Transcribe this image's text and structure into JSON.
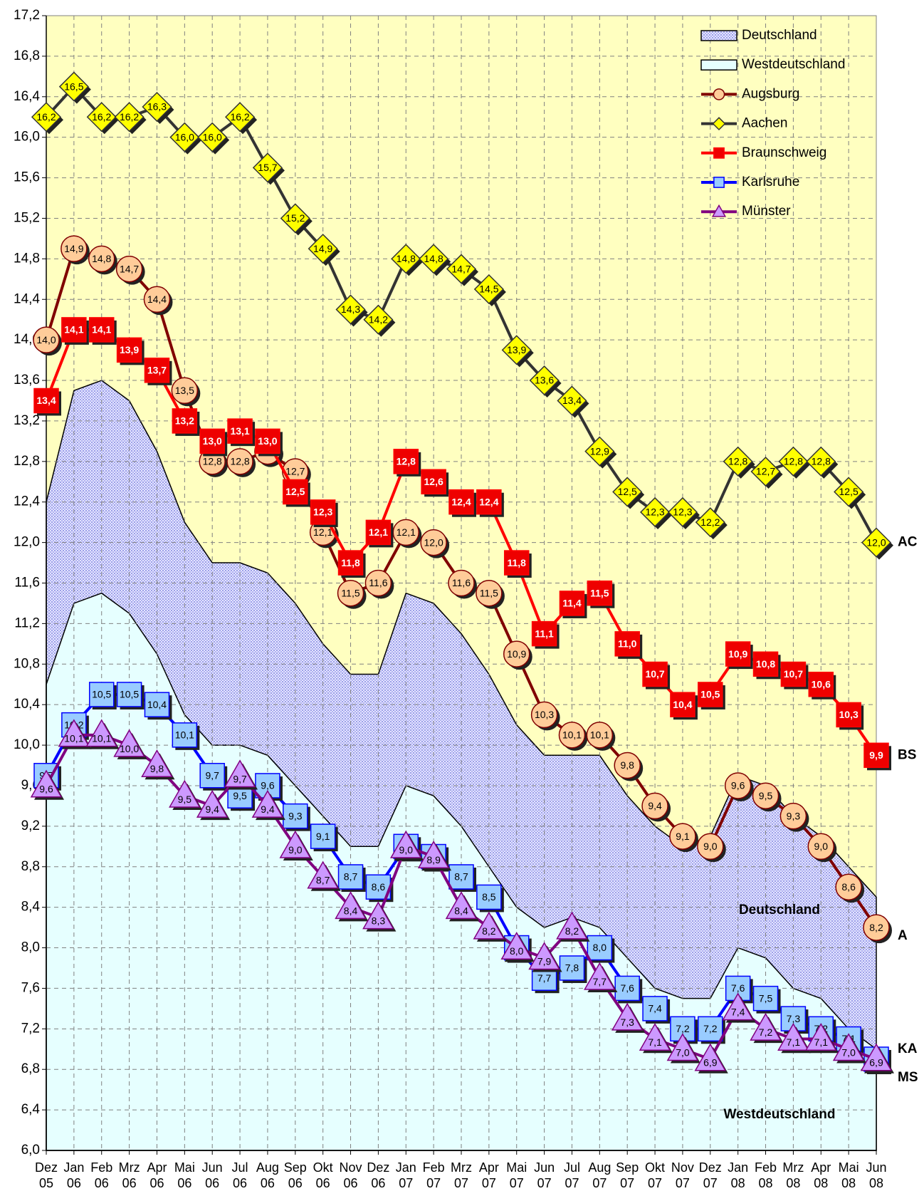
{
  "chart_data": {
    "type": "line",
    "categories": [
      "Dez 05",
      "Jan 06",
      "Feb 06",
      "Mrz 06",
      "Apr 06",
      "Mai 06",
      "Jun 06",
      "Jul 06",
      "Aug 06",
      "Sep 06",
      "Okt 06",
      "Nov 06",
      "Dez 06",
      "Jan 07",
      "Feb 07",
      "Mrz 07",
      "Apr 07",
      "Mai 07",
      "Jun 07",
      "Jul 07",
      "Aug 07",
      "Sep 07",
      "Okt 07",
      "Nov 07",
      "Dez 07",
      "Jan 08",
      "Feb 08",
      "Mrz 08",
      "Apr 08",
      "Mai 08",
      "Jun 08"
    ],
    "ylim": [
      6.0,
      17.2
    ],
    "yticks": [
      {
        "value": 6.0,
        "label": "6,0"
      },
      {
        "value": 6.4,
        "label": "6,4"
      },
      {
        "value": 6.8,
        "label": "6,8"
      },
      {
        "value": 7.2,
        "label": "7,2"
      },
      {
        "value": 7.6,
        "label": "7,6"
      },
      {
        "value": 8.0,
        "label": "8,0"
      },
      {
        "value": 8.4,
        "label": "8,4"
      },
      {
        "value": 8.8,
        "label": "8,8"
      },
      {
        "value": 9.2,
        "label": "9,2"
      },
      {
        "value": 9.6,
        "label": "9,6"
      },
      {
        "value": 10.0,
        "label": "10,0"
      },
      {
        "value": 10.4,
        "label": "10,4"
      },
      {
        "value": 10.8,
        "label": "10,8"
      },
      {
        "value": 11.2,
        "label": "11,2"
      },
      {
        "value": 11.6,
        "label": "11,6"
      },
      {
        "value": 12.0,
        "label": "12,0"
      },
      {
        "value": 12.4,
        "label": "12,4"
      },
      {
        "value": 12.8,
        "label": "12,8"
      },
      {
        "value": 13.2,
        "label": "13,2"
      },
      {
        "value": 13.6,
        "label": "13,6"
      },
      {
        "value": 14.0,
        "label": "14,0"
      },
      {
        "value": 14.4,
        "label": "14,4"
      },
      {
        "value": 14.8,
        "label": "14,8"
      },
      {
        "value": 15.2,
        "label": "15,2"
      },
      {
        "value": 15.6,
        "label": "15,6"
      },
      {
        "value": 16.0,
        "label": "16,0"
      },
      {
        "value": 16.4,
        "label": "16,4"
      },
      {
        "value": 16.8,
        "label": "16,8"
      },
      {
        "value": 17.2,
        "label": "17,2"
      }
    ],
    "grid": true,
    "legend": "upper right",
    "plot_background": "#ffffc0",
    "series": [
      {
        "name": "Deutschland",
        "kind": "area",
        "color": "#7777ee",
        "fill": "#dfe2ff",
        "values": [
          12.4,
          13.5,
          13.6,
          13.4,
          12.9,
          12.2,
          11.8,
          11.8,
          11.7,
          11.4,
          11.0,
          10.7,
          10.7,
          11.5,
          11.4,
          11.1,
          10.7,
          10.2,
          9.9,
          9.9,
          9.9,
          9.5,
          9.2,
          9.0,
          9.1,
          9.7,
          9.6,
          9.3,
          9.1,
          8.8,
          8.5
        ]
      },
      {
        "name": "Westdeutschland",
        "kind": "area",
        "color": "#e6ffff",
        "fill": "#e6ffff",
        "values": [
          10.6,
          11.4,
          11.5,
          11.3,
          10.9,
          10.3,
          10.0,
          10.0,
          9.9,
          9.6,
          9.3,
          9.0,
          9.0,
          9.6,
          9.5,
          9.2,
          8.8,
          8.4,
          8.2,
          8.3,
          8.2,
          7.9,
          7.6,
          7.5,
          7.5,
          8.0,
          7.9,
          7.6,
          7.5,
          7.2,
          7.0
        ]
      },
      {
        "name": "Augsburg",
        "kind": "line",
        "marker": "circle",
        "color": "#800000",
        "fill": "#ffcc99",
        "label_color": "#000000",
        "end_label": "A",
        "values": [
          14.0,
          14.9,
          14.8,
          14.7,
          14.4,
          13.5,
          12.8,
          12.8,
          12.9,
          12.7,
          12.1,
          11.5,
          11.6,
          12.1,
          12.0,
          11.6,
          11.5,
          10.9,
          10.3,
          10.1,
          10.1,
          9.8,
          9.4,
          9.1,
          9.0,
          9.6,
          9.5,
          9.3,
          9.0,
          8.6,
          8.2
        ],
        "value_labels": [
          "14,0",
          "14,9",
          "14,8",
          "14,7",
          "14,4",
          "13,5",
          "12,8",
          "12,8",
          null,
          "12,7",
          "12,1",
          "11,5",
          "11,6",
          "12,1",
          "12,0",
          "11,6",
          "11,5",
          "10,9",
          "10,3",
          "10,1",
          "10,1",
          "9,8",
          "9,4",
          "9,1",
          "9,0",
          "9,6",
          "9,5",
          "9,3",
          "9,0",
          "8,6",
          "8,2"
        ]
      },
      {
        "name": "Aachen",
        "kind": "line",
        "marker": "diamond",
        "color": "#333333",
        "fill": "#ffff00",
        "label_color": "#000000",
        "end_label": "AC",
        "values": [
          16.2,
          16.5,
          16.2,
          16.2,
          16.3,
          16.0,
          16.0,
          16.2,
          15.7,
          15.2,
          14.9,
          14.3,
          14.2,
          14.8,
          14.8,
          14.7,
          14.5,
          13.9,
          13.6,
          13.4,
          12.9,
          12.5,
          12.3,
          12.3,
          12.2,
          12.8,
          12.7,
          12.8,
          12.8,
          12.5,
          12.0
        ],
        "value_labels": [
          "16,2",
          "16,5",
          "16,2",
          "16,2",
          "16,3",
          "16,0",
          "16,0",
          "16,2",
          "15,7",
          "15,2",
          "14,9",
          "14,3",
          "14,2",
          "14,8",
          "14,8",
          "14,7",
          "14,5",
          "13,9",
          "13,6",
          "13,4",
          "12,9",
          "12,5",
          "12,3",
          "12,3",
          "12,2",
          "12,8",
          "12,7",
          "12,8",
          "12,8",
          "12,5",
          "12,0"
        ]
      },
      {
        "name": "Braunschweig",
        "kind": "line",
        "marker": "square",
        "color": "#ff0000",
        "fill": "#ee0000",
        "label_color": "#ffffff",
        "end_label": "BS",
        "values": [
          13.4,
          14.1,
          14.1,
          13.9,
          13.7,
          13.2,
          13.0,
          13.1,
          13.0,
          12.5,
          12.3,
          11.8,
          12.1,
          12.8,
          12.6,
          12.4,
          12.4,
          11.8,
          11.1,
          11.4,
          11.5,
          11.0,
          10.7,
          10.4,
          10.5,
          10.9,
          10.8,
          10.7,
          10.6,
          10.3,
          9.9
        ],
        "value_labels": [
          "13,4",
          "14,1",
          "14,1",
          "13,9",
          "13,7",
          "13,2",
          "13,0",
          "13,1",
          "13,0",
          "12,5",
          "12,3",
          "11,8",
          "12,1",
          "12,8",
          "12,6",
          "12,4",
          "12,4",
          "11,8",
          "11,1",
          "11,4",
          "11,5",
          "11,0",
          "10,7",
          "10,4",
          "10,5",
          "10,9",
          "10,8",
          "10,7",
          "10,6",
          "10,3",
          "9,9"
        ]
      },
      {
        "name": "Karlsruhe",
        "kind": "line",
        "marker": "square",
        "color": "#0000ff",
        "fill": "#99ccff",
        "label_color": "#000000",
        "end_label": "KA",
        "values": [
          9.7,
          10.2,
          10.5,
          10.5,
          10.4,
          10.1,
          9.7,
          9.5,
          9.6,
          9.3,
          9.1,
          8.7,
          8.6,
          9.0,
          8.9,
          8.7,
          8.5,
          8.0,
          7.7,
          7.8,
          8.0,
          7.6,
          7.4,
          7.2,
          7.2,
          7.6,
          7.5,
          7.3,
          7.2,
          7.1,
          6.9
        ],
        "value_labels": [
          "9,7",
          "10,2",
          "10,5",
          "10,5",
          "10,4",
          "10,1",
          "9,7",
          "9,5",
          "9,6",
          "9,3",
          "9,1",
          "8,7",
          "8,6",
          null,
          null,
          "8,7",
          "8,5",
          null,
          "7,7",
          "7,8",
          "8,0",
          "7,6",
          "7,4",
          "7,2",
          "7,2",
          "7,6",
          "7,5",
          "7,3",
          "7,2",
          "7,1",
          "6,9"
        ]
      },
      {
        "name": "Münster",
        "kind": "line",
        "marker": "triangle",
        "color": "#800080",
        "fill": "#cc99ff",
        "label_color": "#000000",
        "end_label": "MS",
        "values": [
          9.6,
          10.1,
          10.1,
          10.0,
          9.8,
          9.5,
          9.4,
          9.7,
          9.4,
          9.0,
          8.7,
          8.4,
          8.3,
          9.0,
          8.9,
          8.4,
          8.2,
          8.0,
          7.9,
          8.2,
          7.7,
          7.3,
          7.1,
          7.0,
          6.9,
          7.4,
          7.2,
          7.1,
          7.1,
          7.0,
          6.9
        ],
        "value_labels": [
          "9,6",
          "10,1",
          "10,1",
          "10,0",
          "9,8",
          "9,5",
          "9,4",
          "9,7",
          "9,4",
          "9,0",
          "8,7",
          "8,4",
          "8,3",
          "9,0",
          "8,9",
          "8,4",
          "8,2",
          "8,0",
          "7,9",
          "8,2",
          "7,7",
          "7,3",
          "7,1",
          "7,0",
          "6,9",
          "7,4",
          "7,2",
          "7,1",
          "7,1",
          "7,0",
          "6,9"
        ]
      }
    ],
    "area_labels": [
      {
        "text": "Deutschland",
        "series": 0,
        "x": 26.5,
        "y": 8.37
      },
      {
        "text": "Westdeutschland",
        "series": 1,
        "x": 26.5,
        "y": 6.35
      }
    ]
  }
}
